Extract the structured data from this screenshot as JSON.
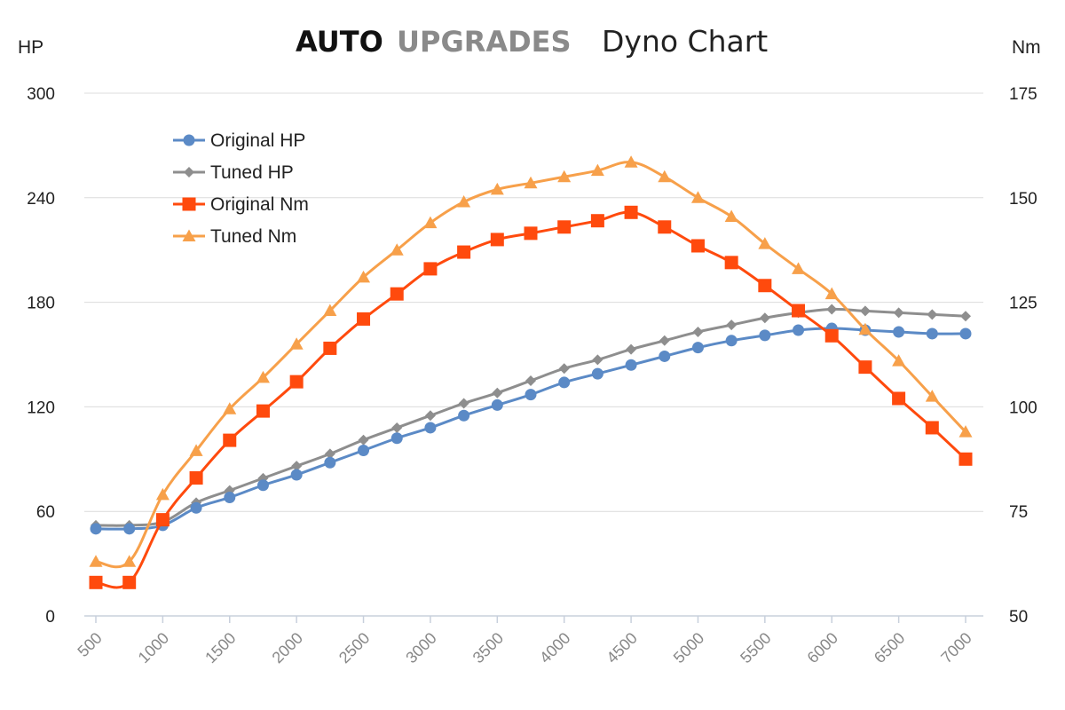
{
  "chart_data": {
    "type": "line",
    "title_brand_1": "AUTO",
    "title_brand_2": "UPGRADES",
    "title": "Dyno Chart",
    "ylabel_left": "HP",
    "ylabel_right": "Nm",
    "ylim_left": [
      0,
      300
    ],
    "ylim_right": [
      50,
      175
    ],
    "yticks_left": [
      "0",
      "60",
      "120",
      "180",
      "240",
      "300"
    ],
    "yticks_right": [
      "50",
      "75",
      "100",
      "125",
      "150",
      "175"
    ],
    "x": [
      500,
      750,
      1000,
      1250,
      1500,
      1750,
      2000,
      2250,
      2500,
      2750,
      3000,
      3250,
      3500,
      3750,
      4000,
      4250,
      4500,
      4750,
      5000,
      5250,
      5500,
      5750,
      6000,
      6250,
      6500,
      6750,
      7000
    ],
    "xticks": [
      "500",
      "1000",
      "1500",
      "2000",
      "2500",
      "3000",
      "3500",
      "4000",
      "4500",
      "5000",
      "5500",
      "6000",
      "6500",
      "7000"
    ],
    "grid": true,
    "legend_position": "top-left",
    "series": [
      {
        "name": "Original HP",
        "axis": "left",
        "color": "#5B8AC6",
        "marker": "circle",
        "values": [
          50,
          50,
          52,
          62,
          68,
          75,
          81,
          88,
          95,
          102,
          108,
          115,
          121,
          127,
          134,
          139,
          144,
          149,
          154,
          158,
          161,
          164,
          165,
          164,
          163,
          162,
          162
        ]
      },
      {
        "name": "Tuned HP",
        "axis": "left",
        "color": "#8E8E8E",
        "marker": "diamond",
        "values": [
          52,
          52,
          54,
          65,
          72,
          79,
          86,
          93,
          101,
          108,
          115,
          122,
          128,
          135,
          142,
          147,
          153,
          158,
          163,
          167,
          171,
          174,
          176,
          175,
          174,
          173,
          172
        ]
      },
      {
        "name": "Original Nm",
        "axis": "right",
        "color": "#FF4A0D",
        "marker": "square",
        "values": [
          58,
          58,
          73,
          83,
          92,
          99,
          106,
          114,
          121,
          127,
          133,
          137,
          140,
          141.5,
          143,
          144.5,
          146.5,
          143,
          138.5,
          134.5,
          129,
          123,
          117,
          109.5,
          102,
          95,
          87.5
        ]
      },
      {
        "name": "Tuned Nm",
        "axis": "right",
        "color": "#F7A04A",
        "marker": "triangle",
        "values": [
          63,
          63,
          79,
          89.5,
          99.5,
          107,
          115,
          123,
          131,
          137.5,
          144,
          149,
          152,
          153.5,
          155,
          156.5,
          158.5,
          155,
          150,
          145.5,
          139,
          133,
          127,
          118.5,
          111,
          102.5,
          94
        ]
      }
    ]
  }
}
